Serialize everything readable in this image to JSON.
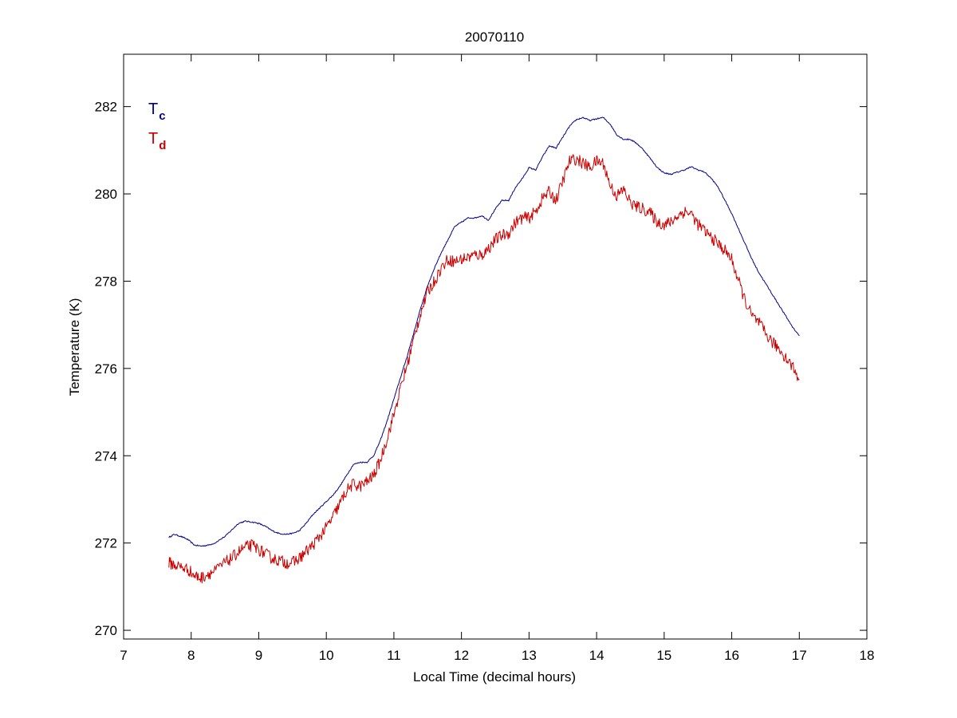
{
  "chart_data": {
    "type": "line",
    "title": "20070110",
    "xlabel": "Local Time (decimal hours)",
    "ylabel": "Temperature (K)",
    "xlim": [
      7,
      18
    ],
    "ylim": [
      269.8,
      283.2
    ],
    "xticks": [
      7,
      8,
      9,
      10,
      11,
      12,
      13,
      14,
      15,
      16,
      17,
      18
    ],
    "yticks": [
      270,
      272,
      274,
      276,
      278,
      280,
      282
    ],
    "grid": false,
    "legend": {
      "placement": "top-left"
    },
    "series": [
      {
        "name": "T",
        "subscript": "c",
        "color": "#00008B",
        "noise": false,
        "x": [
          7.67,
          7.75,
          7.85,
          7.95,
          8.05,
          8.15,
          8.25,
          8.35,
          8.5,
          8.6,
          8.7,
          8.8,
          8.9,
          9.0,
          9.1,
          9.2,
          9.3,
          9.4,
          9.5,
          9.6,
          9.7,
          9.8,
          9.9,
          10.0,
          10.1,
          10.2,
          10.3,
          10.4,
          10.5,
          10.6,
          10.7,
          10.8,
          10.9,
          11.0,
          11.1,
          11.2,
          11.3,
          11.4,
          11.5,
          11.6,
          11.7,
          11.8,
          11.9,
          12.0,
          12.1,
          12.2,
          12.3,
          12.4,
          12.5,
          12.6,
          12.7,
          12.8,
          12.9,
          13.0,
          13.1,
          13.2,
          13.3,
          13.4,
          13.5,
          13.6,
          13.7,
          13.8,
          13.9,
          14.0,
          14.1,
          14.2,
          14.3,
          14.4,
          14.5,
          14.6,
          14.7,
          14.8,
          14.9,
          15.0,
          15.1,
          15.2,
          15.3,
          15.4,
          15.5,
          15.6,
          15.7,
          15.8,
          15.9,
          16.0,
          16.1,
          16.2,
          16.3,
          16.4,
          16.5,
          16.6,
          16.7,
          16.8,
          16.9,
          17.0
        ],
        "y": [
          272.13,
          272.2,
          272.15,
          272.08,
          271.95,
          271.93,
          271.95,
          272.0,
          272.15,
          272.3,
          272.45,
          272.5,
          272.48,
          272.45,
          272.38,
          272.28,
          272.22,
          272.2,
          272.22,
          272.28,
          272.45,
          272.65,
          272.8,
          272.95,
          273.1,
          273.3,
          273.55,
          273.8,
          273.85,
          273.85,
          274.0,
          274.35,
          274.8,
          275.3,
          275.8,
          276.3,
          276.85,
          277.4,
          277.9,
          278.3,
          278.65,
          278.95,
          279.25,
          279.35,
          279.45,
          279.45,
          279.5,
          279.4,
          279.65,
          279.85,
          279.85,
          280.15,
          280.35,
          280.6,
          280.55,
          280.85,
          281.1,
          281.05,
          281.3,
          281.55,
          281.7,
          281.75,
          281.68,
          281.72,
          281.75,
          281.6,
          281.35,
          281.25,
          281.25,
          281.15,
          281.0,
          280.8,
          280.6,
          280.48,
          280.45,
          280.5,
          280.55,
          280.62,
          280.55,
          280.5,
          280.35,
          280.15,
          279.85,
          279.55,
          279.2,
          278.85,
          278.5,
          278.2,
          277.95,
          277.7,
          277.45,
          277.2,
          276.95,
          276.75
        ]
      },
      {
        "name": "T",
        "subscript": "d",
        "color": "#CC0000",
        "noise": true,
        "x": [
          7.67,
          7.75,
          7.85,
          7.95,
          8.05,
          8.15,
          8.25,
          8.35,
          8.5,
          8.6,
          8.7,
          8.8,
          8.9,
          9.0,
          9.1,
          9.2,
          9.3,
          9.4,
          9.5,
          9.6,
          9.7,
          9.8,
          9.9,
          10.0,
          10.1,
          10.2,
          10.3,
          10.4,
          10.5,
          10.6,
          10.7,
          10.8,
          10.9,
          11.0,
          11.1,
          11.2,
          11.3,
          11.4,
          11.5,
          11.6,
          11.7,
          11.8,
          11.9,
          12.0,
          12.1,
          12.2,
          12.3,
          12.4,
          12.5,
          12.6,
          12.7,
          12.8,
          12.9,
          13.0,
          13.1,
          13.2,
          13.3,
          13.4,
          13.5,
          13.6,
          13.7,
          13.8,
          13.9,
          14.0,
          14.1,
          14.2,
          14.3,
          14.4,
          14.5,
          14.6,
          14.7,
          14.8,
          14.9,
          15.0,
          15.1,
          15.2,
          15.3,
          15.4,
          15.5,
          15.6,
          15.7,
          15.8,
          15.9,
          16.0,
          16.1,
          16.2,
          16.3,
          16.4,
          16.5,
          16.6,
          16.7,
          16.8,
          16.9,
          17.0
        ],
        "y": [
          271.55,
          271.5,
          271.45,
          271.4,
          271.25,
          271.2,
          271.3,
          271.35,
          271.55,
          271.65,
          271.8,
          271.9,
          271.95,
          271.85,
          271.75,
          271.65,
          271.6,
          271.55,
          271.55,
          271.65,
          271.8,
          271.95,
          272.15,
          272.35,
          272.6,
          272.9,
          273.2,
          273.35,
          273.3,
          273.4,
          273.55,
          273.9,
          274.4,
          274.95,
          275.55,
          276.1,
          276.7,
          277.3,
          277.75,
          278.0,
          278.3,
          278.5,
          278.45,
          278.5,
          278.55,
          278.6,
          278.6,
          278.75,
          278.95,
          279.05,
          279.1,
          279.35,
          279.45,
          279.45,
          279.6,
          279.9,
          280.05,
          279.85,
          280.3,
          280.75,
          280.8,
          280.7,
          280.6,
          280.75,
          280.7,
          280.2,
          279.95,
          280.1,
          279.8,
          279.7,
          279.65,
          279.55,
          279.35,
          279.3,
          279.35,
          279.5,
          279.6,
          279.55,
          279.3,
          279.15,
          279.0,
          278.85,
          278.7,
          278.5,
          278.0,
          277.55,
          277.2,
          277.05,
          276.8,
          276.6,
          276.45,
          276.25,
          276.05,
          275.75
        ]
      }
    ]
  }
}
